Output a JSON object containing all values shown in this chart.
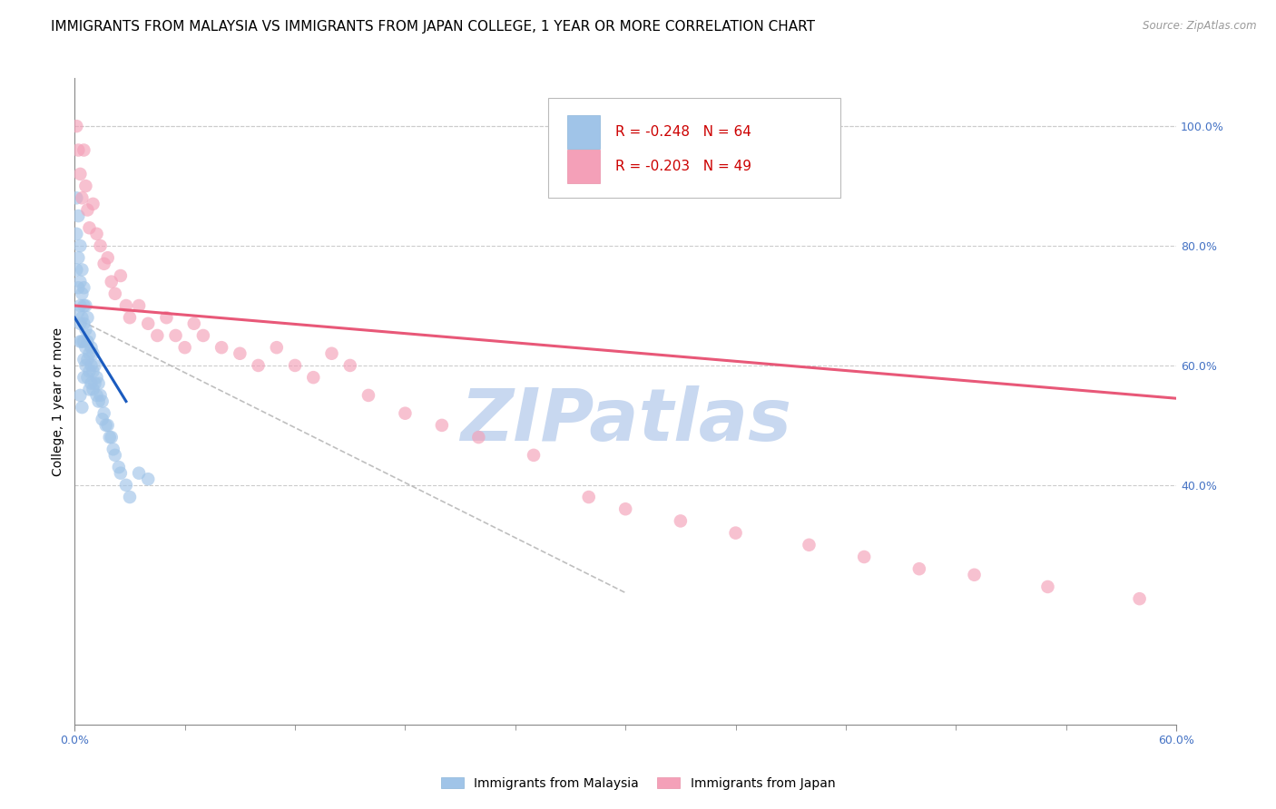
{
  "title": "IMMIGRANTS FROM MALAYSIA VS IMMIGRANTS FROM JAPAN COLLEGE, 1 YEAR OR MORE CORRELATION CHART",
  "source": "Source: ZipAtlas.com",
  "ylabel": "College, 1 year or more",
  "xlim": [
    0.0,
    0.6
  ],
  "ylim": [
    0.0,
    1.08
  ],
  "right_yticks": [
    0.4,
    0.6,
    0.8,
    1.0
  ],
  "right_yticklabels": [
    "40.0%",
    "60.0%",
    "80.0%",
    "100.0%"
  ],
  "xticks": [
    0.0,
    0.6
  ],
  "xticklabels": [
    "0.0%",
    "60.0%"
  ],
  "malaysia_color": "#a0c4e8",
  "japan_color": "#f4a0b8",
  "malaysia_R": "-0.248",
  "malaysia_N": "64",
  "japan_R": "-0.203",
  "japan_N": "49",
  "malaysia_line_color": "#1a5bbf",
  "japan_line_color": "#e85878",
  "malaysia_trend_x": [
    0.0,
    0.028
  ],
  "malaysia_trend_y": [
    0.68,
    0.54
  ],
  "japan_trend_x": [
    0.0,
    0.6
  ],
  "japan_trend_y": [
    0.7,
    0.545
  ],
  "dashed_line_x": [
    0.0,
    0.3
  ],
  "dashed_line_y": [
    0.68,
    0.22
  ],
  "malaysia_scatter_x": [
    0.001,
    0.001,
    0.001,
    0.002,
    0.002,
    0.002,
    0.002,
    0.003,
    0.003,
    0.003,
    0.003,
    0.003,
    0.004,
    0.004,
    0.004,
    0.004,
    0.005,
    0.005,
    0.005,
    0.005,
    0.005,
    0.005,
    0.006,
    0.006,
    0.006,
    0.006,
    0.007,
    0.007,
    0.007,
    0.007,
    0.008,
    0.008,
    0.008,
    0.008,
    0.009,
    0.009,
    0.009,
    0.01,
    0.01,
    0.01,
    0.011,
    0.011,
    0.012,
    0.012,
    0.013,
    0.013,
    0.014,
    0.015,
    0.015,
    0.016,
    0.017,
    0.018,
    0.019,
    0.02,
    0.021,
    0.022,
    0.024,
    0.025,
    0.028,
    0.03,
    0.003,
    0.004,
    0.035,
    0.04
  ],
  "malaysia_scatter_y": [
    0.88,
    0.82,
    0.76,
    0.85,
    0.78,
    0.73,
    0.69,
    0.8,
    0.74,
    0.7,
    0.67,
    0.64,
    0.76,
    0.72,
    0.68,
    0.64,
    0.73,
    0.7,
    0.67,
    0.64,
    0.61,
    0.58,
    0.7,
    0.66,
    0.63,
    0.6,
    0.68,
    0.64,
    0.61,
    0.58,
    0.65,
    0.62,
    0.59,
    0.56,
    0.63,
    0.6,
    0.57,
    0.62,
    0.59,
    0.56,
    0.6,
    0.57,
    0.58,
    0.55,
    0.57,
    0.54,
    0.55,
    0.54,
    0.51,
    0.52,
    0.5,
    0.5,
    0.48,
    0.48,
    0.46,
    0.45,
    0.43,
    0.42,
    0.4,
    0.38,
    0.55,
    0.53,
    0.42,
    0.41
  ],
  "japan_scatter_x": [
    0.001,
    0.002,
    0.003,
    0.004,
    0.005,
    0.006,
    0.007,
    0.008,
    0.01,
    0.012,
    0.014,
    0.016,
    0.018,
    0.02,
    0.022,
    0.025,
    0.028,
    0.03,
    0.035,
    0.04,
    0.045,
    0.05,
    0.055,
    0.06,
    0.065,
    0.07,
    0.08,
    0.09,
    0.1,
    0.11,
    0.12,
    0.13,
    0.14,
    0.15,
    0.16,
    0.18,
    0.2,
    0.22,
    0.25,
    0.28,
    0.3,
    0.33,
    0.36,
    0.4,
    0.43,
    0.46,
    0.49,
    0.53,
    0.58
  ],
  "japan_scatter_y": [
    1.0,
    0.96,
    0.92,
    0.88,
    0.96,
    0.9,
    0.86,
    0.83,
    0.87,
    0.82,
    0.8,
    0.77,
    0.78,
    0.74,
    0.72,
    0.75,
    0.7,
    0.68,
    0.7,
    0.67,
    0.65,
    0.68,
    0.65,
    0.63,
    0.67,
    0.65,
    0.63,
    0.62,
    0.6,
    0.63,
    0.6,
    0.58,
    0.62,
    0.6,
    0.55,
    0.52,
    0.5,
    0.48,
    0.45,
    0.38,
    0.36,
    0.34,
    0.32,
    0.3,
    0.28,
    0.26,
    0.25,
    0.23,
    0.21
  ],
  "watermark": "ZIPatlas",
  "watermark_color": "#c8d8f0",
  "grid_color": "#cccccc",
  "bg_color": "#ffffff",
  "legend_malaysia_label": "Immigrants from Malaysia",
  "legend_japan_label": "Immigrants from Japan",
  "title_fontsize": 11,
  "tick_fontsize": 9,
  "ylabel_fontsize": 10,
  "source_text": "Source: ZipAtlas.com"
}
